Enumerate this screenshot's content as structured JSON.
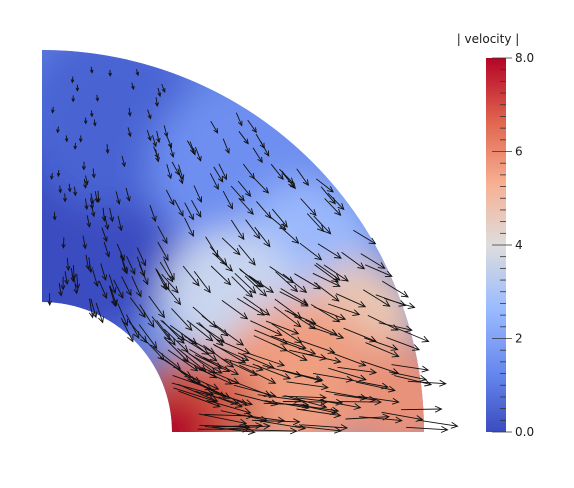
{
  "chart_data": {
    "type": "heatmap",
    "title": "",
    "colorbar": {
      "label": "| velocity |",
      "range": [
        0.0,
        8.0
      ],
      "tick_labels": [
        "8.0",
        "6",
        "4",
        "2",
        "0.0"
      ],
      "tick_values": [
        8,
        6,
        4,
        2,
        0
      ],
      "colormap": [
        "#3b4cc0",
        "#7396f5",
        "#b0cbfc",
        "#dddddd",
        "#f6b497",
        "#e07357",
        "#b40426"
      ]
    },
    "domain": {
      "shape": "quarter-annulus",
      "inner_radius": 1.0,
      "outer_radius": 3.0,
      "angle_deg": [
        0,
        90
      ]
    },
    "field": {
      "note_values": "velocity magnitude, highest near inner radius at bottom, lowest in upper-left",
      "samples": [
        {
          "r": 1.0,
          "theta_deg": 0,
          "speed": 7.8
        },
        {
          "r": 1.5,
          "theta_deg": 10,
          "speed": 6.6
        },
        {
          "r": 2.2,
          "theta_deg": 15,
          "speed": 5.7
        },
        {
          "r": 3.0,
          "theta_deg": 5,
          "speed": 5.3
        },
        {
          "r": 2.0,
          "theta_deg": 35,
          "speed": 4.0
        },
        {
          "r": 3.0,
          "theta_deg": 35,
          "speed": 3.2
        },
        {
          "r": 1.5,
          "theta_deg": 60,
          "speed": 2.1
        },
        {
          "r": 2.5,
          "theta_deg": 60,
          "speed": 1.4
        },
        {
          "r": 2.0,
          "theta_deg": 80,
          "speed": 0.8
        },
        {
          "r": 3.0,
          "theta_deg": 85,
          "speed": 1.1
        }
      ]
    },
    "glyphs": "velocity vector arrows, pointing roughly in +x direction near bottom and -y direction near top-left"
  }
}
